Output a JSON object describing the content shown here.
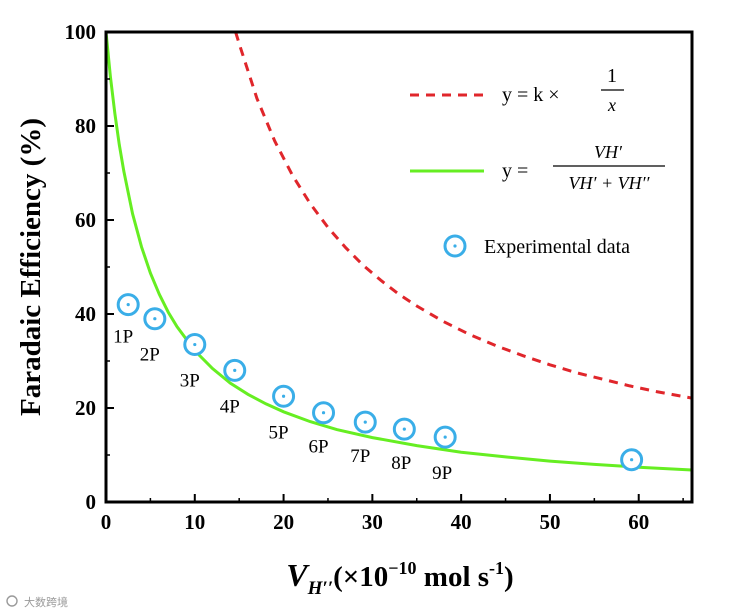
{
  "chart_data": {
    "type": "scatter",
    "title": "",
    "ylabel": "Faradaic Efficiency (%)",
    "xlabel": {
      "symbol": "V",
      "subscript": "H′′",
      "unit_prefix": "(×10",
      "exponent": "−10",
      "unit_text": " mol s",
      "unit_exponent": "-1",
      "close": ")"
    },
    "xlim": [
      0,
      66
    ],
    "ylim": [
      0,
      100
    ],
    "x_ticks": [
      "0",
      "10",
      "20",
      "30",
      "40",
      "50",
      "60"
    ],
    "x_tick_values": [
      0,
      10,
      20,
      30,
      40,
      50,
      60
    ],
    "y_ticks": [
      "0",
      "20",
      "40",
      "60",
      "80",
      "100"
    ],
    "y_tick_values": [
      0,
      20,
      40,
      60,
      80,
      100
    ],
    "series": [
      {
        "name": "Experimental data",
        "kind": "scatter",
        "color": "#3aaee8",
        "points": [
          {
            "x": 2.5,
            "y": 42.0,
            "label": "1P"
          },
          {
            "x": 5.5,
            "y": 39.0,
            "label": "2P"
          },
          {
            "x": 10.0,
            "y": 33.5,
            "label": "3P"
          },
          {
            "x": 14.5,
            "y": 28.0,
            "label": "4P"
          },
          {
            "x": 20.0,
            "y": 22.5,
            "label": "5P"
          },
          {
            "x": 24.5,
            "y": 19.0,
            "label": "6P"
          },
          {
            "x": 29.2,
            "y": 17.0,
            "label": "7P"
          },
          {
            "x": 33.6,
            "y": 15.5,
            "label": "8P"
          },
          {
            "x": 38.2,
            "y": 13.8,
            "label": "9P"
          },
          {
            "x": 59.2,
            "y": 9.0,
            "label": ""
          }
        ]
      },
      {
        "name": "y = k × 1/x",
        "kind": "dashed-line",
        "color": "#e0262b",
        "points": [
          [
            14.6,
            100
          ],
          [
            15,
            97.5
          ],
          [
            17,
            85.9
          ],
          [
            19,
            76.8
          ],
          [
            21,
            69.5
          ],
          [
            23,
            63.5
          ],
          [
            25,
            58.4
          ],
          [
            27,
            54.1
          ],
          [
            29,
            50.3
          ],
          [
            31,
            47.1
          ],
          [
            33,
            44.2
          ],
          [
            35,
            41.7
          ],
          [
            38,
            38.4
          ],
          [
            41,
            35.6
          ],
          [
            44,
            33.2
          ],
          [
            47,
            31.1
          ],
          [
            50,
            29.2
          ],
          [
            53,
            27.5
          ],
          [
            56,
            26.1
          ],
          [
            59,
            24.7
          ],
          [
            62,
            23.5
          ],
          [
            66,
            22.1
          ]
        ]
      },
      {
        "name": "y = V_H′ / (V_H′ + V_H′′)",
        "kind": "solid-line",
        "color": "#66ee22",
        "points": [
          [
            0,
            100
          ],
          [
            0.5,
            90.5
          ],
          [
            1,
            82.6
          ],
          [
            1.5,
            76.0
          ],
          [
            2,
            70.4
          ],
          [
            3,
            61.3
          ],
          [
            4,
            54.3
          ],
          [
            5,
            48.7
          ],
          [
            6,
            44.2
          ],
          [
            7,
            40.4
          ],
          [
            8,
            37.3
          ],
          [
            10,
            32.2
          ],
          [
            12,
            28.4
          ],
          [
            14,
            25.3
          ],
          [
            16,
            22.9
          ],
          [
            18,
            20.9
          ],
          [
            20,
            19.2
          ],
          [
            23,
            17.1
          ],
          [
            26,
            15.4
          ],
          [
            30,
            13.7
          ],
          [
            35,
            12.0
          ],
          [
            40,
            10.6
          ],
          [
            45,
            9.6
          ],
          [
            50,
            8.7
          ],
          [
            55,
            8.0
          ],
          [
            60,
            7.4
          ],
          [
            66,
            6.8
          ]
        ]
      }
    ],
    "legend": {
      "placement": "top-right",
      "entries": [
        {
          "type": "dashed-line",
          "color": "#e0262b",
          "text": "y = k ×",
          "frac_num": "1",
          "frac_den": "x"
        },
        {
          "type": "solid-line",
          "color": "#66ee22",
          "text": "y =",
          "frac_num": "VH′",
          "frac_den": "VH′ + VH′′"
        },
        {
          "type": "marker",
          "color": "#3aaee8",
          "text": "Experimental data"
        }
      ]
    }
  },
  "watermark": {
    "text": "大数跨境"
  }
}
